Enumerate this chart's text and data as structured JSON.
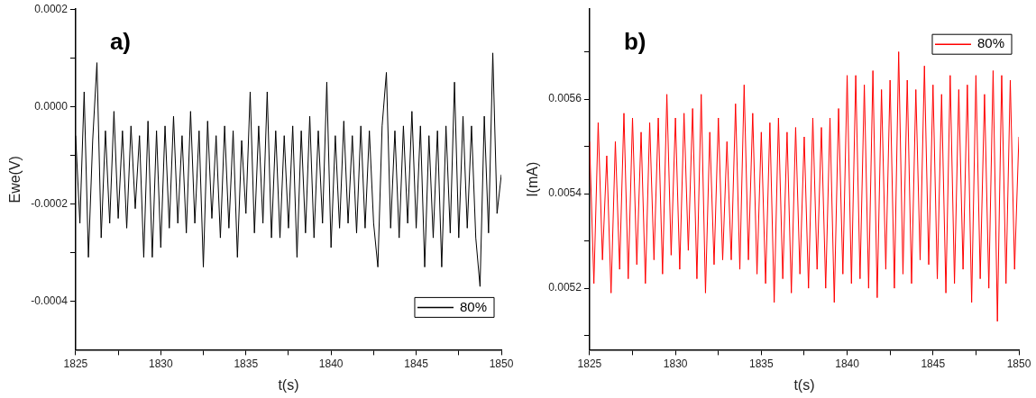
{
  "chart_data": [
    {
      "type": "line",
      "title": "a)",
      "xlabel": "t(s)",
      "ylabel": "Ewe(V)",
      "legend": "bottom right",
      "grid": false,
      "marker": "none",
      "line_style": "solid",
      "xlim": [
        1825,
        1850
      ],
      "xticks": [
        1825,
        {
          "value": 1827.5,
          "label": null
        },
        1830,
        {
          "value": 1832.5,
          "label": null
        },
        1835,
        {
          "value": 1837.5,
          "label": null
        },
        1840,
        {
          "value": 1842.5,
          "label": null
        },
        1845,
        {
          "value": 1847.5,
          "label": null
        },
        1850
      ],
      "ylim": [
        -0.0005,
        0.0002
      ],
      "yticks": [
        {
          "value": -0.0004,
          "label": "-0.0004"
        },
        {
          "value": -0.0003,
          "label": null
        },
        {
          "value": -0.0002,
          "label": "-0.0002"
        },
        {
          "value": -0.0001,
          "label": null
        },
        {
          "value": 0,
          "label": "0.0000"
        },
        {
          "value": 0.0001,
          "label": null
        },
        {
          "value": 0.0002,
          "label": "0.0002"
        }
      ],
      "x": [
        1825,
        1825.25,
        1825.5,
        1825.75,
        1826,
        1826.25,
        1826.5,
        1826.75,
        1827,
        1827.25,
        1827.5,
        1827.75,
        1828,
        1828.25,
        1828.5,
        1828.75,
        1829,
        1829.25,
        1829.5,
        1829.75,
        1830,
        1830.25,
        1830.5,
        1830.75,
        1831,
        1831.25,
        1831.5,
        1831.75,
        1832,
        1832.25,
        1832.5,
        1832.75,
        1833,
        1833.25,
        1833.5,
        1833.75,
        1834,
        1834.25,
        1834.5,
        1834.75,
        1835,
        1835.25,
        1835.5,
        1835.75,
        1836,
        1836.25,
        1836.5,
        1836.75,
        1837,
        1837.25,
        1837.5,
        1837.75,
        1838,
        1838.25,
        1838.5,
        1838.75,
        1839,
        1839.25,
        1839.5,
        1839.75,
        1840,
        1840.25,
        1840.5,
        1840.75,
        1841,
        1841.25,
        1841.5,
        1841.75,
        1842,
        1842.25,
        1842.5,
        1842.75,
        1843,
        1843.25,
        1843.5,
        1843.75,
        1844,
        1844.25,
        1844.5,
        1844.75,
        1845,
        1845.25,
        1845.5,
        1845.75,
        1846,
        1846.25,
        1846.5,
        1846.75,
        1847,
        1847.25,
        1847.5,
        1847.75,
        1848,
        1848.25,
        1848.5,
        1848.75,
        1849,
        1849.25,
        1849.5,
        1849.75,
        1850
      ],
      "series": [
        {
          "name": "80%",
          "color": "#000000",
          "values": [
            -6e-05,
            -0.00024,
            3e-05,
            -0.00031,
            -7e-05,
            9e-05,
            -0.00027,
            -5e-05,
            -0.00024,
            -1e-05,
            -0.00023,
            -5e-05,
            -0.00025,
            -4e-05,
            -0.00021,
            -6e-05,
            -0.00031,
            -3e-05,
            -0.00031,
            -5e-05,
            -0.00029,
            -4e-05,
            -0.00025,
            -2e-05,
            -0.00024,
            -6e-05,
            -0.00026,
            -1e-05,
            -0.00024,
            -5e-05,
            -0.00033,
            -3e-05,
            -0.00023,
            -6e-05,
            -0.00027,
            -4e-05,
            -0.00025,
            -5e-05,
            -0.00031,
            -7e-05,
            -0.00022,
            3e-05,
            -0.00026,
            -4e-05,
            -0.00024,
            3e-05,
            -0.00027,
            -5e-05,
            -0.00027,
            -6e-05,
            -0.00025,
            -4e-05,
            -0.00031,
            -5e-05,
            -0.00026,
            -2e-05,
            -0.00027,
            -5e-05,
            -0.00024,
            5e-05,
            -0.00029,
            -6e-05,
            -0.00025,
            -3e-05,
            -0.00024,
            -6e-05,
            -0.00026,
            -4e-05,
            -0.00025,
            -5e-05,
            -0.00024,
            -0.00033,
            -4e-05,
            7e-05,
            -0.00025,
            -5e-05,
            -0.00027,
            -4e-05,
            -0.00024,
            -1e-05,
            -0.00025,
            -4e-05,
            -0.00033,
            -6e-05,
            -0.00027,
            -5e-05,
            -0.00033,
            -4e-05,
            -0.00026,
            5e-05,
            -0.00027,
            -2e-05,
            -0.00025,
            -4e-05,
            -0.00027,
            -0.00037,
            -2e-05,
            -0.00026,
            0.00011,
            -0.00022,
            -0.00014
          ]
        }
      ]
    },
    {
      "type": "line",
      "title": "b)",
      "xlabel": "t(s)",
      "ylabel": "I(mA)",
      "legend": "top right",
      "grid": false,
      "marker": "none",
      "line_style": "solid",
      "xlim": [
        1825,
        1850
      ],
      "xticks": [
        1825,
        {
          "value": 1827.5,
          "label": null
        },
        1830,
        {
          "value": 1832.5,
          "label": null
        },
        1835,
        {
          "value": 1837.5,
          "label": null
        },
        1840,
        {
          "value": 1842.5,
          "label": null
        },
        1845,
        {
          "value": 1847.5,
          "label": null
        },
        1850
      ],
      "ylim": [
        0.00507,
        0.00579
      ],
      "yticks": [
        {
          "value": 0.0051,
          "label": null
        },
        0.0052,
        {
          "value": 0.0053,
          "label": null
        },
        0.0054,
        {
          "value": 0.0055,
          "label": null
        },
        0.0056,
        {
          "value": 0.0057,
          "label": null
        }
      ],
      "x": [
        1825,
        1825.25,
        1825.5,
        1825.75,
        1826,
        1826.25,
        1826.5,
        1826.75,
        1827,
        1827.25,
        1827.5,
        1827.75,
        1828,
        1828.25,
        1828.5,
        1828.75,
        1829,
        1829.25,
        1829.5,
        1829.75,
        1830,
        1830.25,
        1830.5,
        1830.75,
        1831,
        1831.25,
        1831.5,
        1831.75,
        1832,
        1832.25,
        1832.5,
        1832.75,
        1833,
        1833.25,
        1833.5,
        1833.75,
        1834,
        1834.25,
        1834.5,
        1834.75,
        1835,
        1835.25,
        1835.5,
        1835.75,
        1836,
        1836.25,
        1836.5,
        1836.75,
        1837,
        1837.25,
        1837.5,
        1837.75,
        1838,
        1838.25,
        1838.5,
        1838.75,
        1839,
        1839.25,
        1839.5,
        1839.75,
        1840,
        1840.25,
        1840.5,
        1840.75,
        1841,
        1841.25,
        1841.5,
        1841.75,
        1842,
        1842.25,
        1842.5,
        1842.75,
        1843,
        1843.25,
        1843.5,
        1843.75,
        1844,
        1844.25,
        1844.5,
        1844.75,
        1845,
        1845.25,
        1845.5,
        1845.75,
        1846,
        1846.25,
        1846.5,
        1846.75,
        1847,
        1847.25,
        1847.5,
        1847.75,
        1848,
        1848.25,
        1848.5,
        1848.75,
        1849,
        1849.25,
        1849.5,
        1849.75,
        1850
      ],
      "series": [
        {
          "name": "80%",
          "color": "#ff0000",
          "values": [
            0.00551,
            0.00521,
            0.00555,
            0.00526,
            0.00548,
            0.00519,
            0.00551,
            0.00524,
            0.00557,
            0.00522,
            0.00556,
            0.00525,
            0.00553,
            0.00521,
            0.00555,
            0.00526,
            0.00556,
            0.00523,
            0.00561,
            0.00527,
            0.00556,
            0.00524,
            0.00557,
            0.00528,
            0.00558,
            0.00522,
            0.00561,
            0.00519,
            0.00553,
            0.00525,
            0.00556,
            0.00526,
            0.00551,
            0.00526,
            0.00559,
            0.00524,
            0.00563,
            0.00526,
            0.00557,
            0.00523,
            0.00553,
            0.00521,
            0.00555,
            0.00517,
            0.00556,
            0.00522,
            0.00553,
            0.00519,
            0.00554,
            0.00523,
            0.00552,
            0.0052,
            0.00556,
            0.00524,
            0.00554,
            0.0052,
            0.00556,
            0.00517,
            0.00558,
            0.00523,
            0.00565,
            0.00521,
            0.00565,
            0.00522,
            0.00563,
            0.0052,
            0.00566,
            0.00518,
            0.00562,
            0.00524,
            0.00564,
            0.0052,
            0.0057,
            0.00523,
            0.00564,
            0.00521,
            0.00562,
            0.00526,
            0.00567,
            0.00525,
            0.00563,
            0.00522,
            0.00561,
            0.00519,
            0.00565,
            0.00521,
            0.00562,
            0.00524,
            0.00563,
            0.00517,
            0.00565,
            0.00522,
            0.00561,
            0.0052,
            0.00566,
            0.00513,
            0.00565,
            0.00521,
            0.00564,
            0.00524,
            0.00552
          ]
        }
      ]
    }
  ]
}
